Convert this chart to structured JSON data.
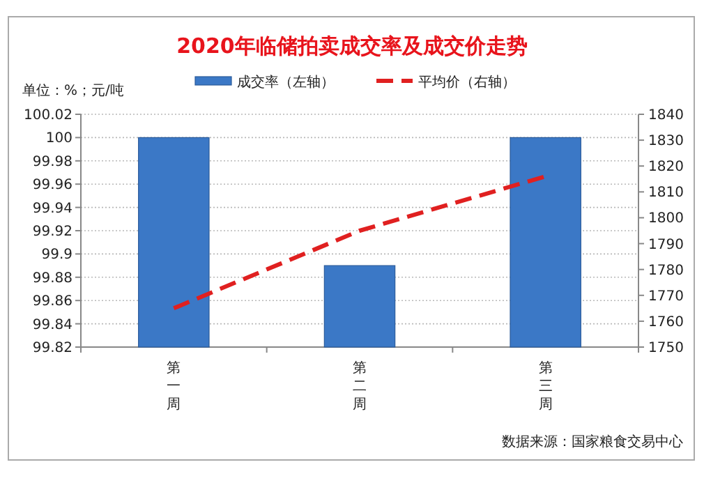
{
  "chart_data": {
    "type": "bar",
    "title": "2020年临储拍卖成交率及成交价走势",
    "subtitle": "单位：%；元/吨",
    "categories": [
      "第一周",
      "第二周",
      "第三周"
    ],
    "series": [
      {
        "name": "成交率（左轴）",
        "color": "#3b78c6",
        "values": [
          100,
          99.89,
          100
        ]
      },
      {
        "name": "平均价（右轴）",
        "type": "line",
        "axis": "y2",
        "color": "#e02020",
        "line_style": "dashed",
        "values": [
          1765,
          1795,
          1816
        ]
      }
    ],
    "ylim": [
      99.82,
      100.02
    ],
    "yticks": [
      99.82,
      99.84,
      99.86,
      99.88,
      99.9,
      99.92,
      99.94,
      99.96,
      99.98,
      100,
      100.02
    ],
    "y2lim": [
      1750,
      1840
    ],
    "y2ticks": [
      1750,
      1760,
      1770,
      1780,
      1790,
      1800,
      1810,
      1820,
      1830,
      1840
    ],
    "grid": "y",
    "legend": "top",
    "marker": "none",
    "annotations": [
      "数据来源：国家粮食交易中心"
    ]
  }
}
